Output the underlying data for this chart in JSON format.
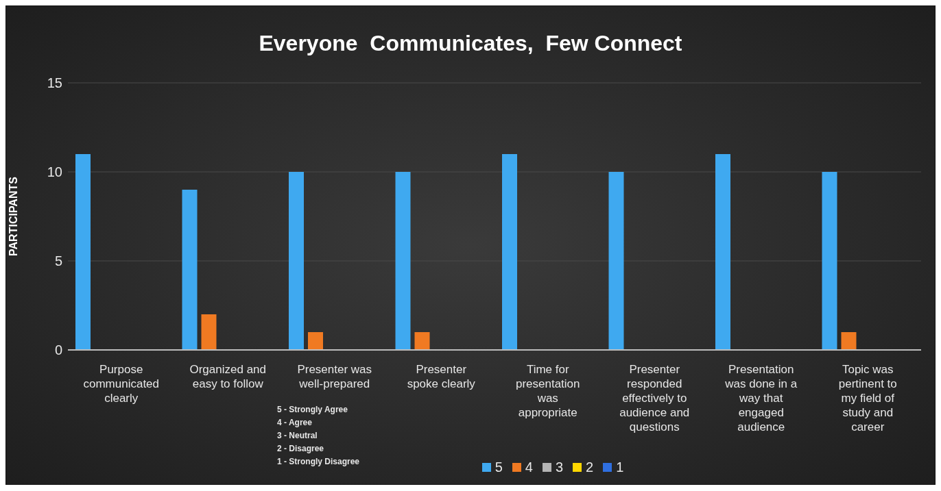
{
  "chart_data": {
    "type": "bar",
    "title": "Everyone  Communicates,  Few Connect",
    "ylabel": "PARTICIPANTS",
    "categories": [
      "Purpose communicated clearly",
      "Organized and easy to follow",
      "Presenter was well-prepared",
      "Presenter spoke clearly",
      "Time for presentation was appropriate",
      "Presenter responded effectively to audience and questions",
      "Presentation was done in a way that engaged audience",
      "Topic was pertinent to my field of study and career"
    ],
    "series": [
      {
        "name": "5",
        "color": "#3fa9f0",
        "values": [
          11,
          9,
          10,
          10,
          11,
          10,
          11,
          10
        ]
      },
      {
        "name": "4",
        "color": "#f07a22",
        "values": [
          0,
          2,
          1,
          1,
          0,
          0,
          0,
          1
        ]
      },
      {
        "name": "3",
        "color": "#b4b4b4",
        "values": [
          0,
          0,
          0,
          0,
          0,
          0,
          0,
          0
        ]
      },
      {
        "name": "2",
        "color": "#ffd700",
        "values": [
          0,
          0,
          0,
          0,
          0,
          0,
          0,
          0
        ]
      },
      {
        "name": "1",
        "color": "#2f6fe0",
        "values": [
          0,
          0,
          0,
          0,
          0,
          0,
          0,
          0
        ]
      }
    ],
    "ylim": [
      0,
      15
    ],
    "yticks": [
      0,
      5,
      10,
      15
    ],
    "grid": "y",
    "legend": "bottom",
    "annotations": [
      "5 - Strongly Agree",
      "4 - Agree",
      "3 - Neutral",
      "2 - Disagree",
      "1 - Strongly Disagree"
    ]
  }
}
